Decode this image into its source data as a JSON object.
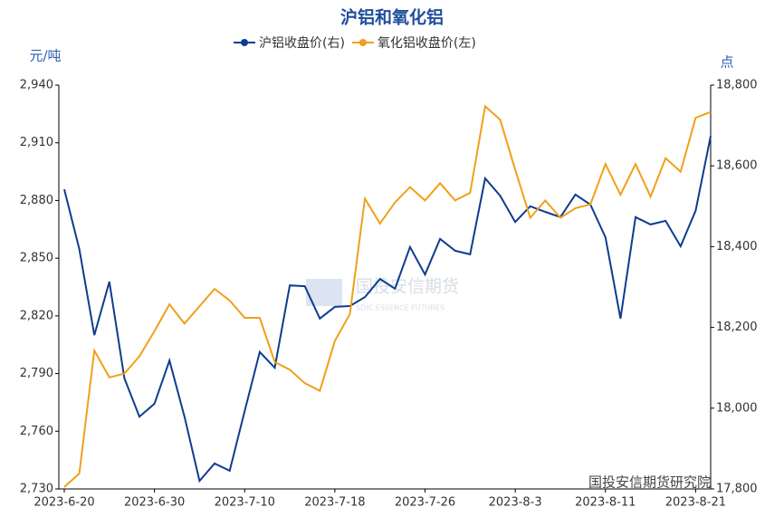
{
  "chart_data": {
    "type": "line",
    "title": "沪铝和氧化铝",
    "y_label": "元/吨",
    "y2_label": "点",
    "categories": [
      "2023-6-20",
      null,
      null,
      null,
      null,
      null,
      "2023-6-30",
      null,
      null,
      null,
      null,
      null,
      "2023-7-10",
      null,
      null,
      null,
      null,
      null,
      "2023-7-18",
      null,
      null,
      null,
      null,
      null,
      "2023-7-26",
      null,
      null,
      null,
      null,
      null,
      "2023-8-3",
      null,
      null,
      null,
      null,
      null,
      "2023-8-11",
      null,
      null,
      null,
      null,
      null,
      "2023-8-21",
      null
    ],
    "series": [
      {
        "name": "沪铝收盘价(右)",
        "color": "#0d3d8f",
        "axis": "y2",
        "values": [
          18542,
          18394,
          18181,
          18313,
          18074,
          17979,
          18011,
          18118,
          17979,
          17820,
          17863,
          17845,
          17993,
          18139,
          18100,
          18304,
          18302,
          18222,
          18251,
          18253,
          18275,
          18320,
          18296,
          18399,
          18331,
          18419,
          18390,
          18381,
          18569,
          18526,
          18461,
          18500,
          18486,
          18473,
          18529,
          18504,
          18423,
          18222,
          18473,
          18455,
          18464,
          18401,
          18489,
          18674
        ]
      },
      {
        "name": "氧化铝收盘价(左)",
        "color": "#f0a019",
        "axis": "y",
        "values": [
          2731,
          2738,
          2802,
          2788,
          2790,
          2799,
          2812,
          2826,
          2816,
          2825,
          2834,
          2828,
          2819,
          2819,
          2796,
          2792,
          2785,
          2781,
          2807,
          2821,
          2881,
          2868,
          2879,
          2887,
          2880,
          2889,
          2880,
          2884,
          2929,
          2922,
          2896,
          2871,
          2880,
          2871,
          2876,
          2878,
          2899,
          2883,
          2899,
          2882,
          2902,
          2895,
          2923,
          2926
        ]
      }
    ],
    "ylim": [
      2730,
      2940
    ],
    "yticks": [
      {
        "value": 2730,
        "label": "2,730"
      },
      {
        "value": 2760,
        "label": "2,760"
      },
      {
        "value": 2790,
        "label": "2,790"
      },
      {
        "value": 2820,
        "label": "2,820"
      },
      {
        "value": 2850,
        "label": "2,850"
      },
      {
        "value": 2880,
        "label": "2,880"
      },
      {
        "value": 2910,
        "label": "2,910"
      },
      {
        "value": 2940,
        "label": "2,940"
      }
    ],
    "y2lim": [
      17800,
      18800
    ],
    "y2ticks": [
      {
        "value": 17800,
        "label": "17,800"
      },
      {
        "value": 18000,
        "label": "18,000"
      },
      {
        "value": 18200,
        "label": "18,200"
      },
      {
        "value": 18400,
        "label": "18,400"
      },
      {
        "value": 18600,
        "label": "18,600"
      },
      {
        "value": 18800,
        "label": "18,800"
      }
    ],
    "watermark": "国投安信期货",
    "watermark_sub": "SDIC ESSENCE FUTURES",
    "source": "国投安信期货研究院"
  }
}
